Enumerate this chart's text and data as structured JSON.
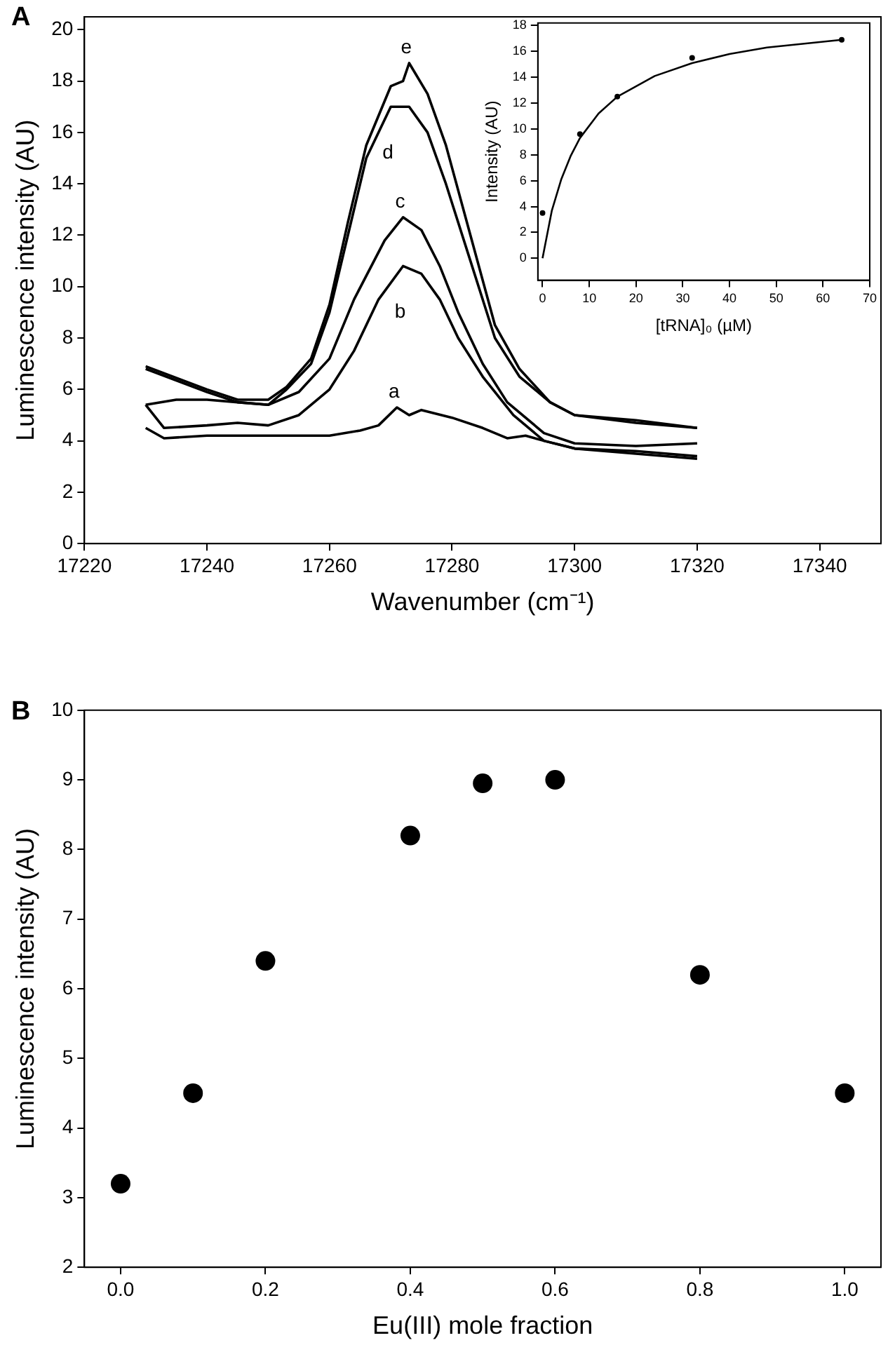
{
  "chart_data": [
    {
      "type": "line",
      "title": "A",
      "xlabel": "Wavenumber (cm⁻¹)",
      "ylabel": "Luminescence intensity (AU)",
      "xlim": [
        17220,
        17350
      ],
      "xticks": [
        17220,
        17240,
        17260,
        17280,
        17300,
        17320,
        17340
      ],
      "ylim": [
        0,
        20.5
      ],
      "yticks": [
        0,
        2,
        4,
        6,
        8,
        10,
        12,
        14,
        16,
        18,
        20
      ],
      "grid": false,
      "legend": false,
      "marker": "none",
      "line_style": "solid",
      "series": [
        {
          "name": "a",
          "color": "#000000",
          "x": [
            17230,
            17233,
            17240,
            17250,
            17260,
            17265,
            17268,
            17271,
            17273,
            17275,
            17280,
            17285,
            17289,
            17292,
            17295,
            17300,
            17310,
            17320
          ],
          "values": [
            4.5,
            4.1,
            4.2,
            4.2,
            4.2,
            4.4,
            4.6,
            5.3,
            5.0,
            5.2,
            4.9,
            4.5,
            4.1,
            4.2,
            4.0,
            3.7,
            3.5,
            3.3
          ]
        },
        {
          "name": "b",
          "color": "#000000",
          "x": [
            17230,
            17233,
            17240,
            17245,
            17250,
            17255,
            17260,
            17264,
            17268,
            17272,
            17275,
            17278,
            17281,
            17285,
            17290,
            17295,
            17300,
            17310,
            17320
          ],
          "values": [
            5.4,
            4.5,
            4.6,
            4.7,
            4.6,
            5.0,
            6.0,
            7.5,
            9.5,
            10.8,
            10.5,
            9.5,
            8.0,
            6.5,
            5.0,
            4.0,
            3.7,
            3.6,
            3.4
          ]
        },
        {
          "name": "c",
          "color": "#000000",
          "x": [
            17230,
            17235,
            17240,
            17245,
            17250,
            17255,
            17260,
            17264,
            17269,
            17272,
            17275,
            17278,
            17281,
            17285,
            17289,
            17295,
            17300,
            17310,
            17320
          ],
          "values": [
            5.4,
            5.6,
            5.6,
            5.5,
            5.4,
            5.9,
            7.2,
            9.5,
            11.8,
            12.7,
            12.2,
            10.8,
            9.0,
            7.0,
            5.5,
            4.3,
            3.9,
            3.8,
            3.9
          ]
        },
        {
          "name": "d",
          "color": "#000000",
          "x": [
            17230,
            17240,
            17245,
            17250,
            17253,
            17257,
            17260,
            17263,
            17266,
            17270,
            17273,
            17276,
            17279,
            17283,
            17287,
            17291,
            17296,
            17300,
            17310,
            17320
          ],
          "values": [
            6.8,
            5.9,
            5.5,
            5.4,
            6.0,
            7.0,
            9.0,
            12.0,
            15.0,
            17.0,
            17.0,
            16.0,
            14.0,
            11.0,
            8.0,
            6.5,
            5.5,
            5.0,
            4.7,
            4.5
          ]
        },
        {
          "name": "e",
          "color": "#000000",
          "x": [
            17230,
            17240,
            17245,
            17250,
            17253,
            17257,
            17260,
            17263,
            17266,
            17270,
            17272,
            17273,
            17276,
            17279,
            17283,
            17287,
            17291,
            17296,
            17300,
            17310,
            17320
          ],
          "values": [
            6.9,
            6.0,
            5.6,
            5.6,
            6.1,
            7.2,
            9.3,
            12.5,
            15.5,
            17.8,
            18.0,
            18.7,
            17.5,
            15.5,
            12.0,
            8.5,
            6.8,
            5.5,
            5.0,
            4.8,
            4.5
          ]
        }
      ]
    },
    {
      "type": "scatter",
      "xlabel": "[tRNA]₀ (µM)",
      "ylabel": "Intensity (AU)",
      "xlim": [
        -1,
        70
      ],
      "xticks": [
        0,
        10,
        20,
        30,
        40,
        50,
        60,
        70
      ],
      "ylim": [
        -1.7,
        18.2
      ],
      "yticks": [
        0,
        2,
        4,
        6,
        8,
        10,
        12,
        14,
        16,
        18
      ],
      "grid": false,
      "legend": false,
      "marker": "circle",
      "series": [
        {
          "color": "#000000",
          "x": [
            0,
            8,
            16,
            32,
            64
          ],
          "values": [
            3.5,
            9.6,
            12.5,
            15.5,
            16.9
          ]
        },
        {
          "type": "line",
          "marker": "none",
          "color": "#000000",
          "x": [
            0,
            2,
            4,
            6,
            8,
            12,
            16,
            24,
            32,
            40,
            48,
            56,
            64
          ],
          "values": [
            0,
            3.7,
            6.1,
            7.9,
            9.3,
            11.2,
            12.5,
            14.1,
            15.1,
            15.8,
            16.3,
            16.6,
            16.9
          ]
        }
      ]
    },
    {
      "type": "scatter",
      "title": "B",
      "xlabel": "Eu(III) mole fraction",
      "ylabel": "Luminescence intensity (AU)",
      "xlim": [
        -0.05,
        1.05
      ],
      "xticks": [
        {
          "value": 0,
          "label": "0.0"
        },
        {
          "value": 0.2,
          "label": "0.2"
        },
        {
          "value": 0.4,
          "label": "0.4"
        },
        {
          "value": 0.6,
          "label": "0.6"
        },
        {
          "value": 0.8,
          "label": "0.8"
        },
        {
          "value": 1,
          "label": "1.0"
        }
      ],
      "ylim": [
        2,
        10
      ],
      "yticks": [
        2,
        3,
        4,
        5,
        6,
        7,
        8,
        9,
        10
      ],
      "grid": false,
      "legend": false,
      "marker": "circle",
      "series": [
        {
          "color": "#000000",
          "x": [
            0,
            0.1,
            0.2,
            0.4,
            0.5,
            0.6,
            0.8,
            1.0
          ],
          "values": [
            3.2,
            4.5,
            6.4,
            8.2,
            8.95,
            9.0,
            6.2,
            4.5
          ]
        }
      ]
    }
  ]
}
